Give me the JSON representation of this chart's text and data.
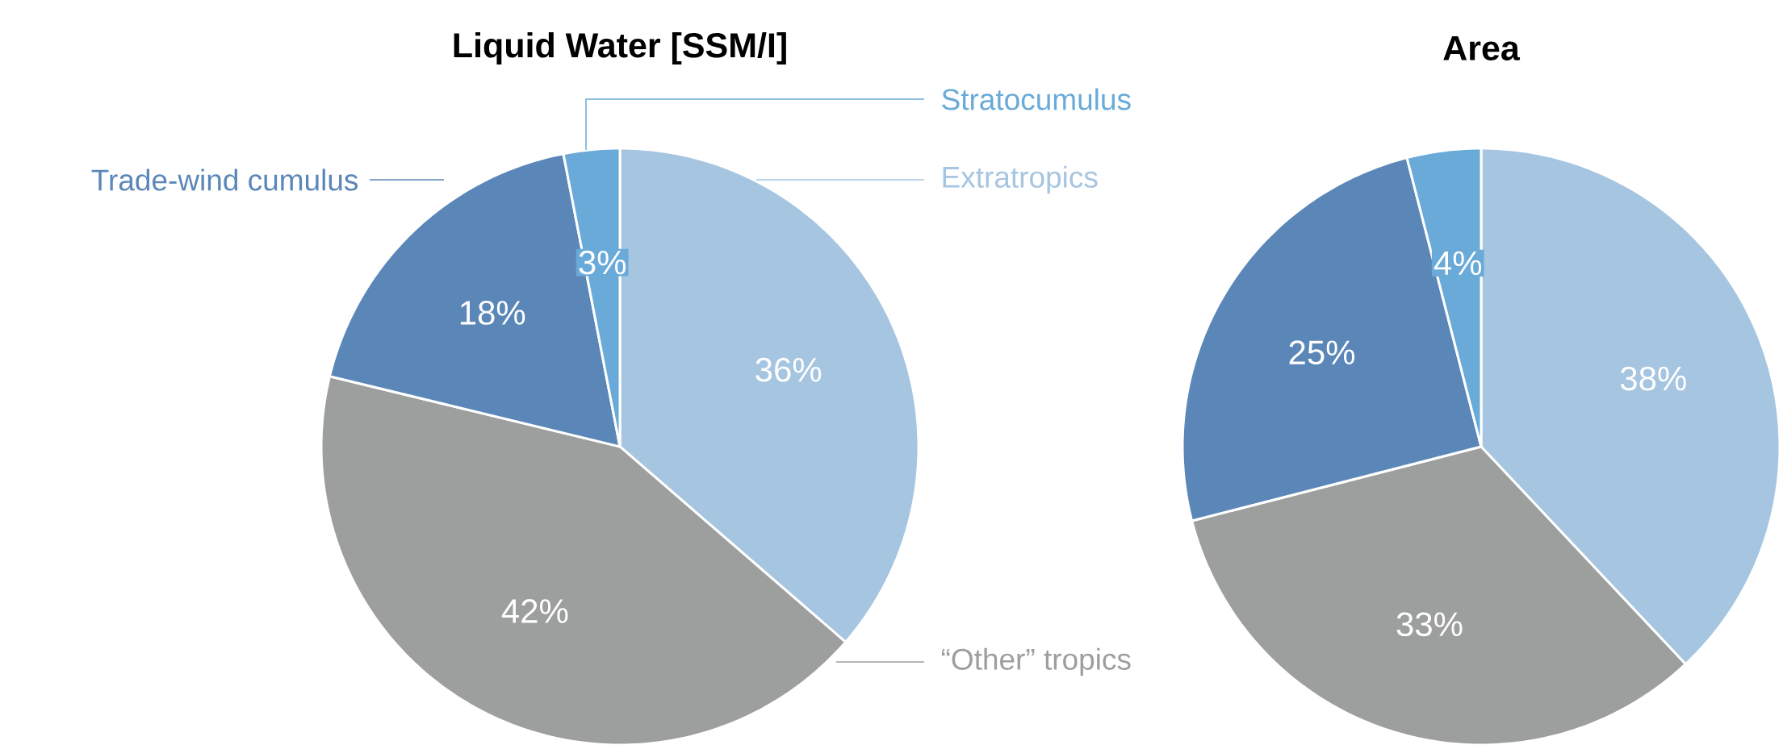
{
  "chart_data": [
    {
      "type": "pie",
      "title": "Liquid Water [SSM/I]",
      "categories": [
        "Extratropics",
        "“Other” tropics",
        "Trade-wind cumulus",
        "Stratocumulus"
      ],
      "values": [
        36,
        42,
        18,
        3
      ],
      "value_labels": [
        "36%",
        "42%",
        "18%",
        "3%"
      ],
      "colors": [
        "#a6c5e0",
        "#9d9e9e",
        "#5b87b8",
        "#6aaad8"
      ]
    },
    {
      "type": "pie",
      "title": "Area",
      "categories": [
        null,
        null,
        null,
        null
      ],
      "values": [
        38,
        33,
        25,
        4
      ],
      "value_labels": [
        "38%",
        "33%",
        "25%",
        "4%"
      ],
      "colors": [
        "#a6c5e0",
        "#9d9e9e",
        "#5b87b8",
        "#6aaad8"
      ]
    }
  ]
}
